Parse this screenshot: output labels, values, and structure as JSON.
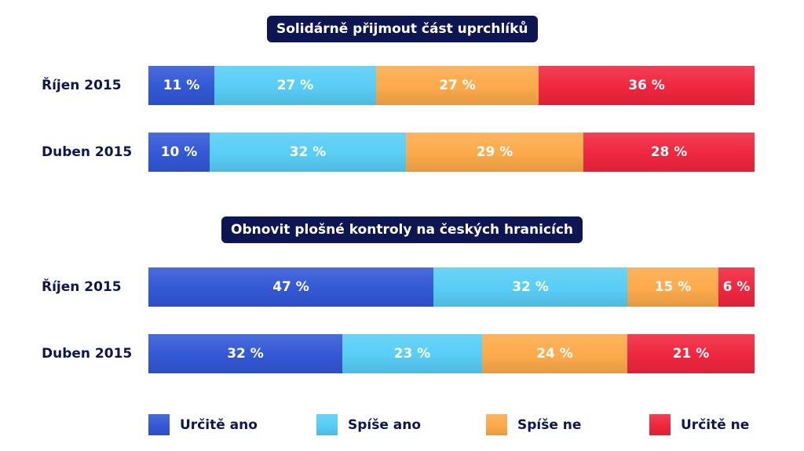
{
  "chart_data": [
    {
      "type": "bar",
      "stacked": true,
      "orientation": "horizontal",
      "title": "Solidárně přijmout část uprchlíků",
      "categories": [
        "Říjen 2015",
        "Duben 2015"
      ],
      "series": [
        {
          "name": "Určitě ano",
          "values": [
            11,
            10
          ],
          "labels": [
            "11 %",
            "10 %"
          ],
          "color": "#3358d6"
        },
        {
          "name": "Spíše ano",
          "values": [
            27,
            32
          ],
          "labels": [
            "27 %",
            "32 %"
          ],
          "color": "#58cdf6"
        },
        {
          "name": "Spíše ne",
          "values": [
            27,
            29
          ],
          "labels": [
            "27 %",
            "29 %"
          ],
          "color": "#fcaa4a"
        },
        {
          "name": "Určitě ne",
          "values": [
            36,
            28
          ],
          "labels": [
            "36 %",
            "28 %"
          ],
          "color": "#f0263e"
        }
      ]
    },
    {
      "type": "bar",
      "stacked": true,
      "orientation": "horizontal",
      "title": "Obnovit plošné kontroly na českých hranicích",
      "categories": [
        "Říjen 2015",
        "Duben 2015"
      ],
      "series": [
        {
          "name": "Určitě ano",
          "values": [
            47,
            32
          ],
          "labels": [
            "47 %",
            "32 %"
          ],
          "color": "#3358d6"
        },
        {
          "name": "Spíše ano",
          "values": [
            32,
            23
          ],
          "labels": [
            "32 %",
            "23 %"
          ],
          "color": "#58cdf6"
        },
        {
          "name": "Spíše ne",
          "values": [
            15,
            24
          ],
          "labels": [
            "15 %",
            "24 %"
          ],
          "color": "#fcaa4a"
        },
        {
          "name": "Určitě ne",
          "values": [
            6,
            21
          ],
          "labels": [
            "6 %",
            "21 %"
          ],
          "color": "#f0263e"
        }
      ]
    }
  ],
  "legend": {
    "placement": "bottom",
    "items": [
      {
        "label": "Určitě ano",
        "color": "#3358d6"
      },
      {
        "label": "Spíše ano",
        "color": "#58cdf6"
      },
      {
        "label": "Spíše ne",
        "color": "#fcaa4a"
      },
      {
        "label": "Určitě ne",
        "color": "#f0263e"
      }
    ]
  }
}
